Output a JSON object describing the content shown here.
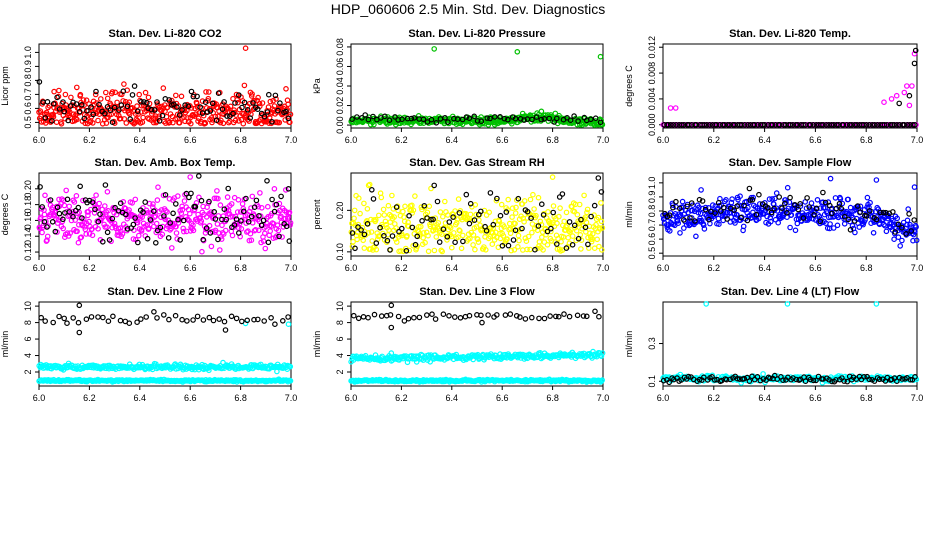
{
  "page_title": "HDP_060606  2.5 Min. Std. Dev. Diagnostics",
  "colors": {
    "co2": "#ff0000",
    "pressure": "#00c000",
    "temp": "#ff00ff",
    "amb": "#ff00ff",
    "rh": "#ffff00",
    "flow": "#0000ff",
    "line": "#00ffff",
    "ref": "#000000"
  },
  "chart_data": [
    {
      "id": "co2",
      "type": "scatter",
      "title": "Stan. Dev. Li-820 CO2",
      "xlabel": "",
      "ylabel": "Licor ppm",
      "xlim": [
        6.0,
        7.0
      ],
      "ylim": [
        0.46,
        1.06
      ],
      "xticks": [
        "6.0",
        "6.2",
        "6.4",
        "6.6",
        "6.8",
        "7.0"
      ],
      "yticks": [
        0.5,
        0.6,
        0.7,
        0.8,
        0.9,
        1.0
      ],
      "ytick_labels": [
        "0.5",
        "0.6",
        "0.7",
        "0.8",
        "0.9",
        "1.0"
      ],
      "series": [
        {
          "name": "colored",
          "color": "#ff0000",
          "n": 420,
          "base": 0.58,
          "spread": 0.065,
          "min": 0.49,
          "outliers": [
            [
              6.82,
              1.03
            ],
            [
              6.15,
              0.75
            ],
            [
              6.98,
              0.74
            ],
            [
              6.06,
              0.72
            ],
            [
              6.35,
              0.73
            ]
          ]
        },
        {
          "name": "black",
          "color": "#000000",
          "n": 90,
          "base": 0.6,
          "spread": 0.06,
          "min": 0.5,
          "outliers": []
        }
      ]
    },
    {
      "id": "pressure",
      "type": "scatter",
      "title": "Stan. Dev. Li-820 Pressure",
      "xlabel": "",
      "ylabel": "kPa",
      "xlim": [
        6.0,
        7.0
      ],
      "ylim": [
        -0.003,
        0.083
      ],
      "xticks": [
        "6.0",
        "6.2",
        "6.4",
        "6.6",
        "6.8",
        "7.0"
      ],
      "yticks": [
        0.0,
        0.02,
        0.04,
        0.06,
        0.08
      ],
      "ytick_labels": [
        "0.00",
        "0.02",
        "0.04",
        "0.06",
        "0.08"
      ],
      "series": [
        {
          "name": "colored",
          "color": "#00c000",
          "n": 400,
          "base": 0.0045,
          "spread": 0.002,
          "min": 0.0,
          "shape": "hump",
          "outliers": [
            [
              6.33,
              0.078
            ],
            [
              6.66,
              0.075
            ],
            [
              6.99,
              0.07
            ]
          ]
        },
        {
          "name": "black",
          "color": "#000000",
          "n": 60,
          "base": 0.006,
          "spread": 0.0015,
          "min": 0.0,
          "outliers": []
        }
      ]
    },
    {
      "id": "temp",
      "type": "scatter",
      "title": "Stan. Dev. Li-820 Temp.",
      "xlabel": "",
      "ylabel": "degrees C",
      "xlim": [
        6.0,
        7.0
      ],
      "ylim": [
        -0.0005,
        0.0125
      ],
      "xticks": [
        "6.0",
        "6.2",
        "6.4",
        "6.6",
        "6.8",
        "7.0"
      ],
      "yticks": [
        0.0,
        0.004,
        0.008,
        0.012
      ],
      "ytick_labels": [
        "0.000",
        "0.004",
        "0.008",
        "0.012"
      ],
      "series": [
        {
          "name": "colored",
          "color": "#ff00ff",
          "n": 120,
          "base": 0.0,
          "spread": 0.0,
          "min": 0.0,
          "shape": "flat",
          "outliers": [
            [
              6.03,
              0.0026
            ],
            [
              6.05,
              0.0026
            ],
            [
              6.87,
              0.0035
            ],
            [
              6.9,
              0.004
            ],
            [
              6.92,
              0.0045
            ],
            [
              6.95,
              0.005
            ],
            [
              6.96,
              0.006
            ],
            [
              6.97,
              0.003
            ],
            [
              6.98,
              0.006
            ],
            [
              6.99,
              0.011
            ]
          ]
        },
        {
          "name": "black",
          "color": "#000000",
          "n": 100,
          "base": 0.0,
          "spread": 0.0,
          "min": 0.0,
          "shape": "flat",
          "outliers": [
            [
              6.93,
              0.0033
            ],
            [
              6.97,
              0.0045
            ],
            [
              6.99,
              0.0095
            ],
            [
              6.995,
              0.0115
            ]
          ]
        }
      ]
    },
    {
      "id": "amb",
      "type": "scatter",
      "title": "Stan. Dev. Amb. Box Temp.",
      "xlabel": "",
      "ylabel": "degrees C",
      "xlim": [
        6.0,
        7.0
      ],
      "ylim": [
        0.115,
        0.22
      ],
      "xticks": [
        "6.0",
        "6.2",
        "6.4",
        "6.6",
        "6.8",
        "7.0"
      ],
      "yticks": [
        0.12,
        0.14,
        0.16,
        0.18,
        0.2
      ],
      "ytick_labels": [
        "0.12",
        "0.14",
        "0.16",
        "0.18",
        "0.20"
      ],
      "series": [
        {
          "name": "colored",
          "color": "#ff00ff",
          "n": 420,
          "base": 0.163,
          "spread": 0.016,
          "min": 0.12,
          "outliers": [
            [
              6.6,
              0.215
            ]
          ]
        },
        {
          "name": "black",
          "color": "#000000",
          "n": 100,
          "base": 0.168,
          "spread": 0.018,
          "min": 0.13,
          "outliers": [
            [
              6.99,
              0.2
            ]
          ]
        }
      ]
    },
    {
      "id": "rh",
      "type": "scatter",
      "title": "Stan. Dev. Gas Stream RH",
      "xlabel": "",
      "ylabel": "percent",
      "xlim": [
        6.0,
        7.0
      ],
      "ylim": [
        0.09,
        0.29
      ],
      "xticks": [
        "6.0",
        "6.2",
        "6.4",
        "6.6",
        "6.8",
        "7.0"
      ],
      "yticks": [
        0.1,
        0.2
      ],
      "ytick_labels": [
        "0.10",
        "0.20"
      ],
      "series": [
        {
          "name": "colored",
          "color": "#ffff00",
          "n": 420,
          "base": 0.16,
          "spread": 0.035,
          "min": 0.1,
          "outliers": [
            [
              6.8,
              0.28
            ],
            [
              6.07,
              0.26
            ]
          ]
        },
        {
          "name": "black",
          "color": "#000000",
          "n": 80,
          "base": 0.17,
          "spread": 0.04,
          "min": 0.1,
          "outliers": [
            [
              6.33,
              0.26
            ]
          ]
        }
      ]
    },
    {
      "id": "flow",
      "type": "scatter",
      "title": "Stan. Dev. Sample Flow",
      "xlabel": "",
      "ylabel": "ml/min",
      "xlim": [
        6.0,
        7.0
      ],
      "ylim": [
        0.48,
        1.07
      ],
      "xticks": [
        "6.0",
        "6.2",
        "6.4",
        "6.6",
        "6.8",
        "7.0"
      ],
      "yticks": [
        0.5,
        0.6,
        0.7,
        0.8,
        0.9,
        1.0
      ],
      "ytick_labels": [
        "0.5",
        "0.6",
        "0.7",
        "0.8",
        "0.9",
        "1.0"
      ],
      "series": [
        {
          "name": "colored",
          "color": "#0000ff",
          "n": 420,
          "base": 0.74,
          "spread": 0.05,
          "min": 0.5,
          "shape": "wave",
          "outliers": [
            [
              6.66,
              1.03
            ],
            [
              6.84,
              1.02
            ],
            [
              6.15,
              0.95
            ],
            [
              6.99,
              0.97
            ]
          ]
        },
        {
          "name": "black",
          "color": "#000000",
          "n": 80,
          "base": 0.77,
          "spread": 0.05,
          "min": 0.6,
          "shape": "wave",
          "outliers": [
            [
              6.34,
              0.96
            ]
          ]
        }
      ]
    },
    {
      "id": "line2",
      "type": "scatter",
      "title": "Stan. Dev. Line 2 Flow",
      "xlabel": "",
      "ylabel": "ml/min",
      "xlim": [
        6.0,
        7.0
      ],
      "ylim": [
        0.3,
        10.5
      ],
      "xticks": [
        "6.0",
        "6.2",
        "6.4",
        "6.6",
        "6.8",
        "7.0"
      ],
      "yticks": [
        2,
        4,
        6,
        8,
        10
      ],
      "ytick_labels": [
        "2",
        "4",
        "6",
        "8",
        "10"
      ],
      "series": [
        {
          "name": "cyan-high",
          "color": "#00ffff",
          "n": 300,
          "base": 2.6,
          "spread": 0.15,
          "min": 2.0,
          "outliers": [
            [
              6.82,
              7.9
            ],
            [
              6.99,
              7.8
            ]
          ]
        },
        {
          "name": "cyan-low",
          "color": "#00ffff",
          "n": 300,
          "base": 0.95,
          "spread": 0.06,
          "min": 0.7,
          "outliers": []
        },
        {
          "name": "black",
          "color": "#000000",
          "n": 45,
          "base": 8.4,
          "spread": 0.3,
          "min": 7.0,
          "outliers": [
            [
              6.16,
              10.1
            ],
            [
              6.16,
              6.8
            ],
            [
              6.74,
              7.1
            ]
          ]
        }
      ]
    },
    {
      "id": "line3",
      "type": "scatter",
      "title": "Stan. Dev. Line 3 Flow",
      "xlabel": "",
      "ylabel": "ml/min",
      "xlim": [
        6.0,
        7.0
      ],
      "ylim": [
        0.3,
        10.5
      ],
      "xticks": [
        "6.0",
        "6.2",
        "6.4",
        "6.6",
        "6.8",
        "7.0"
      ],
      "yticks": [
        2,
        4,
        6,
        8,
        10
      ],
      "ytick_labels": [
        "2",
        "4",
        "6",
        "8",
        "10"
      ],
      "series": [
        {
          "name": "cyan-high",
          "color": "#00ffff",
          "n": 300,
          "base": 3.6,
          "spread": 0.18,
          "min": 2.8,
          "shape": "rise",
          "outliers": [
            [
              6.16,
              4.3
            ]
          ]
        },
        {
          "name": "cyan-low",
          "color": "#00ffff",
          "n": 300,
          "base": 0.95,
          "spread": 0.06,
          "min": 0.7,
          "outliers": []
        },
        {
          "name": "black",
          "color": "#000000",
          "n": 45,
          "base": 8.8,
          "spread": 0.3,
          "min": 7.5,
          "outliers": [
            [
              6.16,
              10.1
            ],
            [
              6.16,
              7.4
            ],
            [
              6.52,
              8.0
            ]
          ]
        }
      ]
    },
    {
      "id": "line4",
      "type": "scatter",
      "title": "Stan. Dev. Line 4 (LT) Flow",
      "xlabel": "",
      "ylabel": "ml/min",
      "xlim": [
        6.0,
        7.0
      ],
      "ylim": [
        0.075,
        0.52
      ],
      "xticks": [
        "6.0",
        "6.2",
        "6.4",
        "6.6",
        "6.8",
        "7.0"
      ],
      "yticks": [
        0.1,
        0.3
      ],
      "ytick_labels": [
        "0.1",
        "0.3"
      ],
      "series": [
        {
          "name": "cyan",
          "color": "#00ffff",
          "n": 300,
          "base": 0.115,
          "spread": 0.007,
          "min": 0.09,
          "outliers": [
            [
              6.17,
              0.51
            ],
            [
              6.49,
              0.51
            ],
            [
              6.84,
              0.51
            ]
          ]
        },
        {
          "name": "black",
          "color": "#000000",
          "n": 100,
          "base": 0.112,
          "spread": 0.008,
          "min": 0.09,
          "outliers": []
        }
      ]
    }
  ]
}
